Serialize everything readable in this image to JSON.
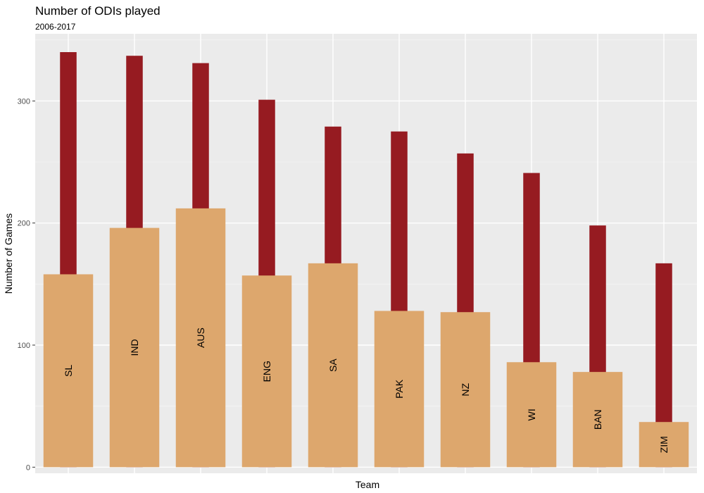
{
  "chart_data": {
    "type": "bar",
    "title": "Number of ODIs played",
    "subtitle": "2006-2017",
    "xlabel": "Team",
    "ylabel": "Number of Games",
    "ylim": [
      -5,
      355
    ],
    "yticks": [
      0,
      100,
      200,
      300
    ],
    "grid": true,
    "categories": [
      "SL",
      "IND",
      "AUS",
      "ENG",
      "SA",
      "PAK",
      "NZ",
      "WI",
      "BAN",
      "ZIM"
    ],
    "series": [
      {
        "values": [
          340,
          337,
          331,
          301,
          279,
          275,
          257,
          241,
          198,
          167
        ],
        "color": "#961B21"
      },
      {
        "values": [
          158,
          196,
          212,
          157,
          167,
          128,
          127,
          86,
          78,
          37
        ],
        "color": "#DDA76D"
      }
    ]
  }
}
